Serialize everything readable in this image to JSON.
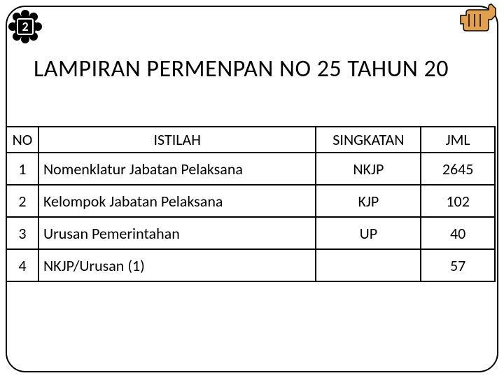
{
  "badge": {
    "number": "2"
  },
  "title": "LAMPIRAN PERMENPAN NO 25 TAHUN 20",
  "table": {
    "columns": [
      "NO",
      "ISTILAH",
      "SINGKATAN",
      "JML"
    ],
    "rows": [
      {
        "no": "1",
        "istilah": "Nomenklatur Jabatan Pelaksana",
        "singkatan": "NKJP",
        "jml": "2645"
      },
      {
        "no": "2",
        "istilah": "Kelompok Jabatan Pelaksana",
        "singkatan": "KJP",
        "jml": "102"
      },
      {
        "no": "3",
        "istilah": "Urusan Pemerintahan",
        "singkatan": "UP",
        "jml": "40"
      },
      {
        "no": "4",
        "istilah": "NKJP/Urusan (1)",
        "singkatan": "",
        "jml": "57"
      }
    ]
  },
  "colors": {
    "border": "#000000",
    "background": "#ffffff",
    "pointer_fill": "#e0a050",
    "pointer_stroke": "#000000",
    "scallop_fill": "#000000"
  }
}
